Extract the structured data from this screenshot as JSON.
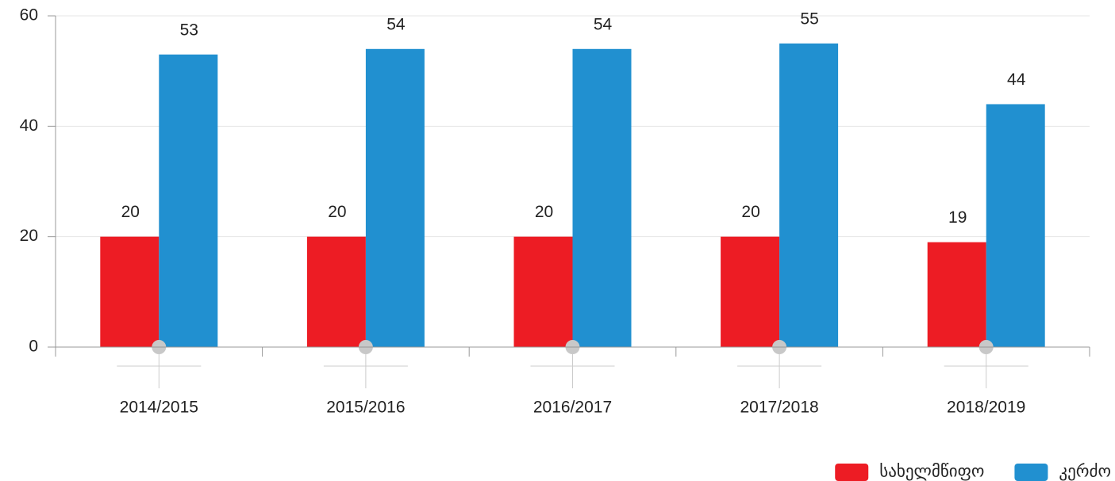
{
  "chart_data": {
    "type": "bar",
    "categories": [
      "2014/2015",
      "2015/2016",
      "2016/2017",
      "2017/2018",
      "2018/2019"
    ],
    "series": [
      {
        "name": "სახელმწიფო",
        "color": "#ed1c24",
        "values": [
          20,
          20,
          20,
          20,
          19
        ]
      },
      {
        "name": "კერძო",
        "color": "#2190d0",
        "values": [
          53,
          54,
          54,
          55,
          44
        ]
      }
    ],
    "ylim": [
      0,
      60
    ],
    "yticks": [
      0,
      20,
      40,
      60
    ],
    "grid": true,
    "legend": "bottom-right"
  }
}
